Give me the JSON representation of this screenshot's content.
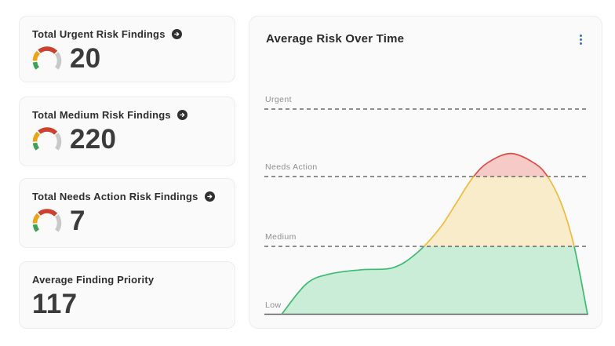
{
  "cards": [
    {
      "title": "Total Urgent Risk Findings",
      "value": "20"
    },
    {
      "title": "Total Medium Risk Findings",
      "value": "220"
    },
    {
      "title": "Total Needs Action Risk Findings",
      "value": "7"
    },
    {
      "title": "Average Finding Priority",
      "value": "117"
    }
  ],
  "chart": {
    "title": "Average Risk Over Time"
  },
  "chart_data": {
    "type": "area",
    "title": "Average Risk Over Time",
    "x_tick_labels": [],
    "threshold_labels": [
      "Urgent",
      "Needs Action",
      "Medium",
      "Low"
    ],
    "level_scale": {
      "0": "Low (baseline)",
      "1": "Medium",
      "2": "Needs Action",
      "3": "Urgent"
    },
    "grid": "dashed horizontal threshold lines, solid baseline",
    "legend": "none",
    "series": [
      {
        "name": "Average Risk",
        "points": [
          [
            0.049,
            0.0
          ],
          [
            0.127,
            0.45
          ],
          [
            0.2,
            0.59
          ],
          [
            0.298,
            0.65
          ],
          [
            0.395,
            0.68
          ],
          [
            0.468,
            0.89
          ],
          [
            0.541,
            1.26
          ],
          [
            0.59,
            1.61
          ],
          [
            0.639,
            1.97
          ],
          [
            0.688,
            2.21
          ],
          [
            0.761,
            2.35
          ],
          [
            0.834,
            2.21
          ],
          [
            0.876,
            2.01
          ],
          [
            0.919,
            1.61
          ],
          [
            0.958,
            1.0
          ],
          [
            1.0,
            0.0
          ]
        ]
      }
    ]
  },
  "colors": {
    "gauge_green": "#3aa355",
    "gauge_amber": "#eaa414",
    "gauge_red": "#cc4130",
    "gauge_gray": "#c9c9c9",
    "area_green_fill": "#c9edd6",
    "area_green_stroke": "#3ebb72",
    "area_amber_fill": "#f8ecca",
    "area_amber_stroke": "#eebb3e",
    "area_red_fill": "#f6cac7",
    "area_red_stroke": "#e04b43",
    "threshold_line": "#4d4d4d",
    "baseline": "#616161",
    "kebab_blue": "#3c6fd3",
    "icon_dark": "#2f2f2f"
  }
}
